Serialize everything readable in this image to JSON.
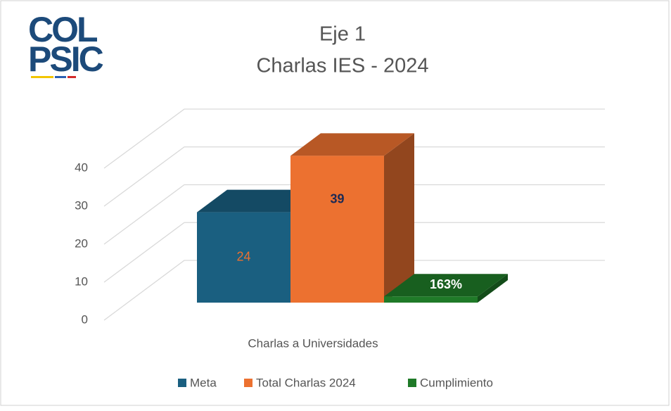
{
  "logo": [
    "COL",
    "PSIC"
  ],
  "chart_data": {
    "type": "bar3d",
    "title": [
      "Eje 1",
      "Charlas IES - 2024"
    ],
    "categories": [
      "Charlas a Universidades"
    ],
    "series": [
      {
        "name": "Meta",
        "color": "#1a5f80",
        "values": [
          24
        ]
      },
      {
        "name": "Total Charlas 2024",
        "color": "#ec7130",
        "values": [
          39
        ]
      },
      {
        "name": "Cumplimiento",
        "color": "#1f7a28",
        "values": [
          1.63
        ],
        "value_labels": [
          "163%"
        ]
      }
    ],
    "ylim": [
      0,
      40
    ],
    "yticks": [
      0,
      10,
      20,
      30,
      40
    ],
    "grid": true,
    "legend": "bottom"
  }
}
